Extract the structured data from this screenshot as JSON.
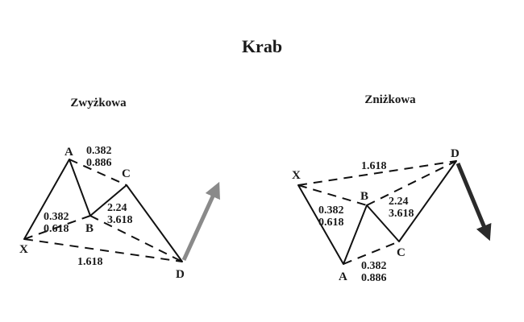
{
  "title": "Krab",
  "bullish": {
    "label": "Zwyżkowa",
    "points": {
      "X": "X",
      "A": "A",
      "B": "B",
      "C": "C",
      "D": "D"
    },
    "ratios": {
      "ab_top": "0.382",
      "ab_bottom": "0.886",
      "xab_top": "0.382",
      "xab_bottom": "0.618",
      "bc_top": "2.24",
      "bc_bottom": "3.618",
      "xd": "1.618"
    },
    "arrow_color": "#8a8a8a"
  },
  "bearish": {
    "label": "Zniżkowa",
    "points": {
      "X": "X",
      "A": "A",
      "B": "B",
      "C": "C",
      "D": "D"
    },
    "ratios": {
      "xd": "1.618",
      "xab_top": "0.382",
      "xab_bottom": "0.618",
      "bc_top": "2.24",
      "bc_bottom": "3.618",
      "ac_top": "0.382",
      "ac_bottom": "0.886"
    },
    "arrow_color": "#2a2a2a"
  }
}
